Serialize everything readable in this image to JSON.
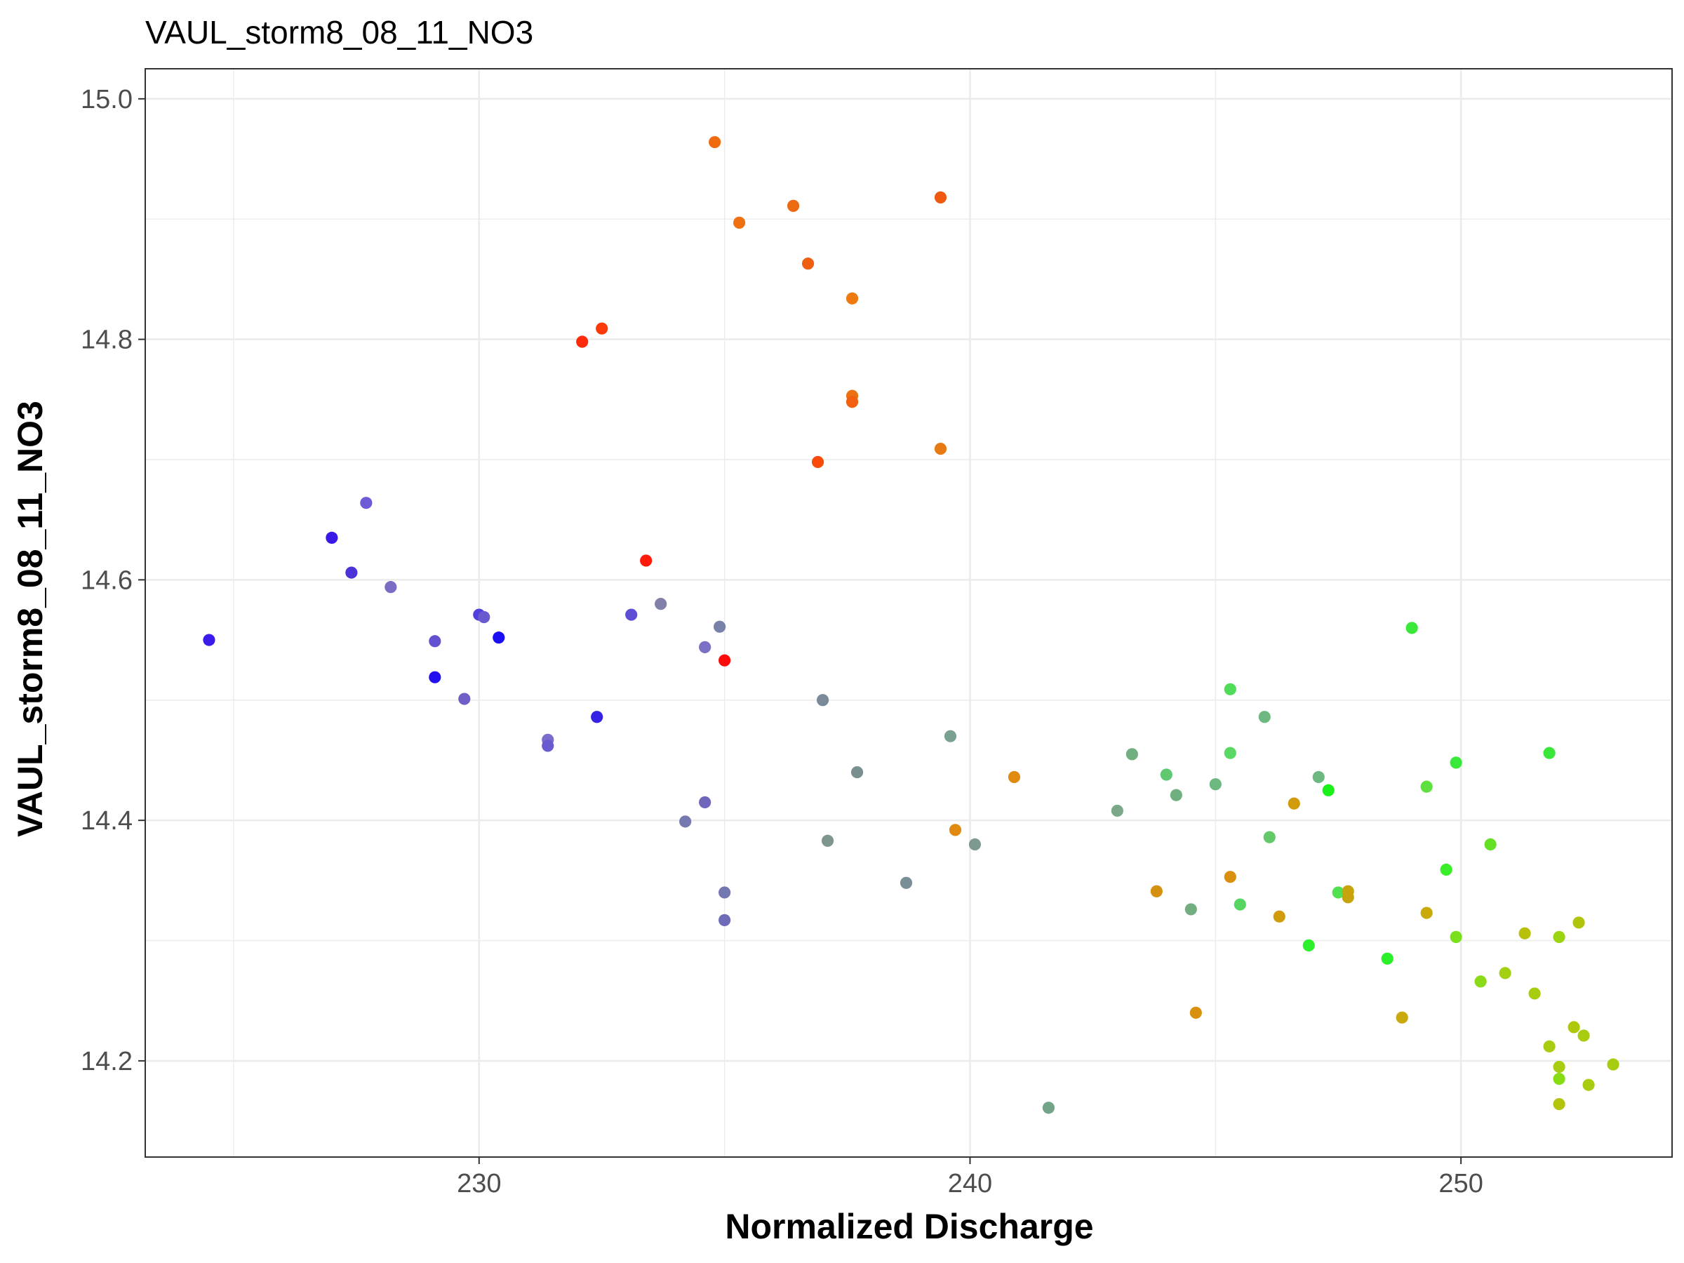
{
  "chart_data": {
    "type": "scatter",
    "title": "VAUL_storm8_08_11_NO3",
    "xlabel": "Normalized Discharge",
    "ylabel": "VAUL_storm8_08_11_NO3",
    "xlim": [
      223.2,
      254.3
    ],
    "ylim": [
      14.12,
      15.025
    ],
    "x_ticks": [
      230,
      240,
      250
    ],
    "y_ticks": [
      14.2,
      14.4,
      14.6,
      14.8,
      15.0
    ],
    "x_tick_labels": [
      "230",
      "240",
      "250"
    ],
    "y_tick_labels": [
      "14.2",
      "14.4",
      "14.6",
      "14.8",
      "15.0"
    ],
    "x_minor_ticks": [
      225,
      235,
      245
    ],
    "y_minor_ticks": [
      14.3,
      14.5,
      14.7,
      14.9
    ],
    "grid": true,
    "legend": "none",
    "points": [
      {
        "x": 224.5,
        "y": 14.55,
        "color": "#3b1aec"
      },
      {
        "x": 227.0,
        "y": 14.635,
        "color": "#3a1ae6"
      },
      {
        "x": 227.7,
        "y": 14.664,
        "color": "#6d5ad6"
      },
      {
        "x": 227.4,
        "y": 14.606,
        "color": "#4a34d8"
      },
      {
        "x": 228.2,
        "y": 14.594,
        "color": "#7a6dc4"
      },
      {
        "x": 229.1,
        "y": 14.549,
        "color": "#6352d0"
      },
      {
        "x": 229.1,
        "y": 14.519,
        "color": "#2410ee"
      },
      {
        "x": 229.7,
        "y": 14.501,
        "color": "#6f5fc6"
      },
      {
        "x": 230.0,
        "y": 14.571,
        "color": "#5040dc"
      },
      {
        "x": 230.1,
        "y": 14.569,
        "color": "#6a5ad0"
      },
      {
        "x": 230.4,
        "y": 14.552,
        "color": "#1a0ef4"
      },
      {
        "x": 231.4,
        "y": 14.467,
        "color": "#7a6ccc"
      },
      {
        "x": 231.4,
        "y": 14.462,
        "color": "#6a5ad0"
      },
      {
        "x": 232.1,
        "y": 14.798,
        "color": "#ff2a0a"
      },
      {
        "x": 232.4,
        "y": 14.486,
        "color": "#3522e4"
      },
      {
        "x": 232.5,
        "y": 14.809,
        "color": "#fa3a0a"
      },
      {
        "x": 233.1,
        "y": 14.571,
        "color": "#5e4ed6"
      },
      {
        "x": 233.4,
        "y": 14.616,
        "color": "#ff1a0a"
      },
      {
        "x": 233.7,
        "y": 14.58,
        "color": "#8080a8"
      },
      {
        "x": 234.2,
        "y": 14.399,
        "color": "#7878b0"
      },
      {
        "x": 234.6,
        "y": 14.544,
        "color": "#7a70c4"
      },
      {
        "x": 234.6,
        "y": 14.415,
        "color": "#6f66bc"
      },
      {
        "x": 234.8,
        "y": 14.964,
        "color": "#f06a10"
      },
      {
        "x": 234.9,
        "y": 14.561,
        "color": "#7882a8"
      },
      {
        "x": 235.0,
        "y": 14.533,
        "color": "#ff0a0a"
      },
      {
        "x": 235.0,
        "y": 14.34,
        "color": "#7478b0"
      },
      {
        "x": 235.0,
        "y": 14.317,
        "color": "#6e6cb8"
      },
      {
        "x": 235.3,
        "y": 14.897,
        "color": "#ee7010"
      },
      {
        "x": 236.4,
        "y": 14.911,
        "color": "#ec6a12"
      },
      {
        "x": 236.7,
        "y": 14.863,
        "color": "#ee6010"
      },
      {
        "x": 236.9,
        "y": 14.698,
        "color": "#fa4a0a"
      },
      {
        "x": 237.0,
        "y": 14.5,
        "color": "#7a8a98"
      },
      {
        "x": 237.1,
        "y": 14.383,
        "color": "#7e968e"
      },
      {
        "x": 237.6,
        "y": 14.834,
        "color": "#ee7a10"
      },
      {
        "x": 237.6,
        "y": 14.753,
        "color": "#ea7210"
      },
      {
        "x": 237.6,
        "y": 14.748,
        "color": "#f0600e"
      },
      {
        "x": 237.7,
        "y": 14.44,
        "color": "#7a9090"
      },
      {
        "x": 238.7,
        "y": 14.348,
        "color": "#7a8e96"
      },
      {
        "x": 239.4,
        "y": 14.918,
        "color": "#f05a10"
      },
      {
        "x": 239.4,
        "y": 14.709,
        "color": "#e87a14"
      },
      {
        "x": 239.6,
        "y": 14.47,
        "color": "#7aa090"
      },
      {
        "x": 239.7,
        "y": 14.392,
        "color": "#e08a10"
      },
      {
        "x": 240.1,
        "y": 14.38,
        "color": "#7e9a8e"
      },
      {
        "x": 240.9,
        "y": 14.436,
        "color": "#e08a10"
      },
      {
        "x": 241.6,
        "y": 14.161,
        "color": "#74a488"
      },
      {
        "x": 243.0,
        "y": 14.408,
        "color": "#7aa888"
      },
      {
        "x": 243.3,
        "y": 14.455,
        "color": "#70b080"
      },
      {
        "x": 243.8,
        "y": 14.341,
        "color": "#d4900e"
      },
      {
        "x": 244.0,
        "y": 14.438,
        "color": "#60c870"
      },
      {
        "x": 244.2,
        "y": 14.421,
        "color": "#70b080"
      },
      {
        "x": 244.5,
        "y": 14.326,
        "color": "#72ae80"
      },
      {
        "x": 244.6,
        "y": 14.24,
        "color": "#d8900e"
      },
      {
        "x": 245.0,
        "y": 14.43,
        "color": "#6cb880"
      },
      {
        "x": 245.3,
        "y": 14.509,
        "color": "#50dc58"
      },
      {
        "x": 245.3,
        "y": 14.456,
        "color": "#5ad864"
      },
      {
        "x": 245.3,
        "y": 14.353,
        "color": "#d8900e"
      },
      {
        "x": 245.5,
        "y": 14.33,
        "color": "#54d660"
      },
      {
        "x": 246.0,
        "y": 14.486,
        "color": "#6cb880"
      },
      {
        "x": 246.1,
        "y": 14.386,
        "color": "#62c86a"
      },
      {
        "x": 246.3,
        "y": 14.32,
        "color": "#d09c0c"
      },
      {
        "x": 246.6,
        "y": 14.414,
        "color": "#d09c0c"
      },
      {
        "x": 246.9,
        "y": 14.296,
        "color": "#2cf02c"
      },
      {
        "x": 247.1,
        "y": 14.436,
        "color": "#6cb880"
      },
      {
        "x": 247.3,
        "y": 14.425,
        "color": "#1af01a"
      },
      {
        "x": 247.5,
        "y": 14.34,
        "color": "#50e050"
      },
      {
        "x": 247.7,
        "y": 14.341,
        "color": "#c8a40c"
      },
      {
        "x": 247.7,
        "y": 14.336,
        "color": "#c8a40c"
      },
      {
        "x": 248.5,
        "y": 14.285,
        "color": "#2af02a"
      },
      {
        "x": 248.8,
        "y": 14.236,
        "color": "#c8aa0c"
      },
      {
        "x": 249.0,
        "y": 14.56,
        "color": "#3ae83a"
      },
      {
        "x": 249.3,
        "y": 14.428,
        "color": "#5ee03e"
      },
      {
        "x": 249.3,
        "y": 14.323,
        "color": "#c8aa0c"
      },
      {
        "x": 249.7,
        "y": 14.359,
        "color": "#3aee2a"
      },
      {
        "x": 249.9,
        "y": 14.448,
        "color": "#3ae83a"
      },
      {
        "x": 249.9,
        "y": 14.303,
        "color": "#7ae01e"
      },
      {
        "x": 250.4,
        "y": 14.266,
        "color": "#8ada1a"
      },
      {
        "x": 250.6,
        "y": 14.38,
        "color": "#64e024"
      },
      {
        "x": 250.9,
        "y": 14.273,
        "color": "#a4d014"
      },
      {
        "x": 251.3,
        "y": 14.306,
        "color": "#b8c00c"
      },
      {
        "x": 251.5,
        "y": 14.256,
        "color": "#a8cc10"
      },
      {
        "x": 251.8,
        "y": 14.456,
        "color": "#3ae63a"
      },
      {
        "x": 251.8,
        "y": 14.212,
        "color": "#a8cc10"
      },
      {
        "x": 252.0,
        "y": 14.303,
        "color": "#9cd412"
      },
      {
        "x": 252.0,
        "y": 14.195,
        "color": "#a8cc10"
      },
      {
        "x": 252.0,
        "y": 14.185,
        "color": "#88dc14"
      },
      {
        "x": 252.0,
        "y": 14.164,
        "color": "#b4c40c"
      },
      {
        "x": 252.3,
        "y": 14.228,
        "color": "#b0c80c"
      },
      {
        "x": 252.4,
        "y": 14.315,
        "color": "#b0c40c"
      },
      {
        "x": 252.5,
        "y": 14.221,
        "color": "#a8cc10"
      },
      {
        "x": 252.6,
        "y": 14.18,
        "color": "#a8cc10"
      },
      {
        "x": 253.1,
        "y": 14.197,
        "color": "#a8cc10"
      }
    ]
  }
}
